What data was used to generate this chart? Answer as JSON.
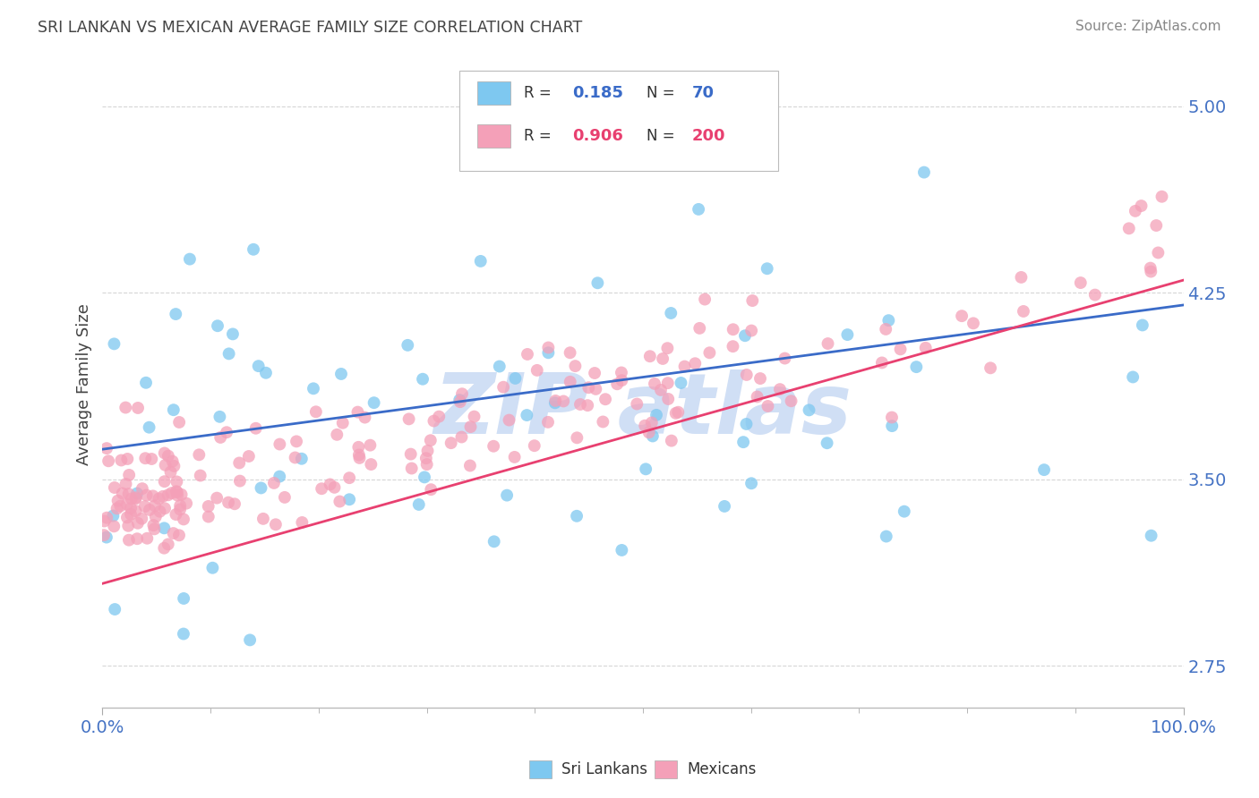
{
  "title": "SRI LANKAN VS MEXICAN AVERAGE FAMILY SIZE CORRELATION CHART",
  "source": "Source: ZipAtlas.com",
  "ylabel": "Average Family Size",
  "xlim": [
    0.0,
    100.0
  ],
  "ylim": [
    2.58,
    5.18
  ],
  "yticks": [
    2.75,
    3.5,
    4.25,
    5.0
  ],
  "xticks": [
    0.0,
    100.0
  ],
  "xticklabels": [
    "0.0%",
    "100.0%"
  ],
  "blue_R": 0.185,
  "blue_N": 70,
  "pink_R": 0.906,
  "pink_N": 200,
  "blue_color": "#7EC8F0",
  "pink_color": "#F4A0B8",
  "blue_line_color": "#3A6BC8",
  "pink_line_color": "#E84070",
  "background_color": "#FFFFFF",
  "grid_color": "#CCCCCC",
  "tick_color": "#4472C4",
  "title_color": "#444444",
  "source_color": "#888888",
  "ylabel_color": "#444444",
  "watermark_color": "#D0DFF5",
  "watermark_text": "ZIP atlas",
  "legend_box_color": "#EEEEEE",
  "blue_line_start_y": 3.62,
  "blue_line_end_y": 4.2,
  "pink_line_start_y": 3.08,
  "pink_line_end_y": 4.3
}
